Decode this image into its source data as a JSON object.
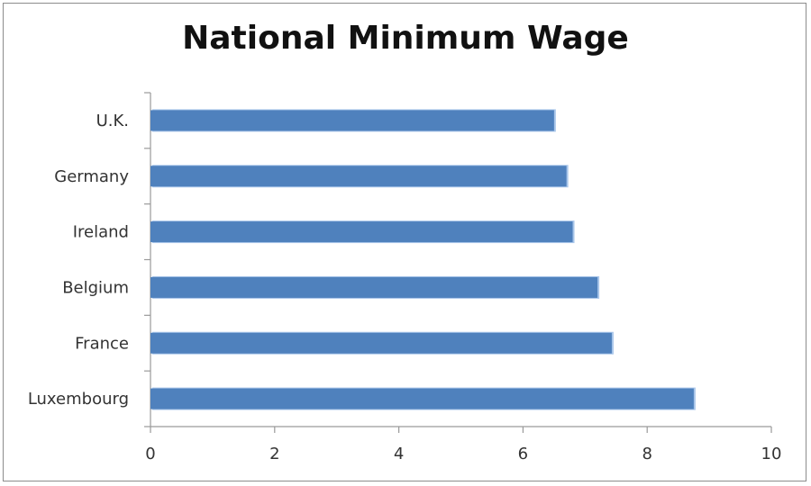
{
  "chart_data": {
    "type": "bar",
    "orientation": "horizontal",
    "title": "National Minimum Wage",
    "categories": [
      "U.K.",
      "Germany",
      "Ireland",
      "Belgium",
      "France",
      "Luxembourg"
    ],
    "values": [
      6.5,
      6.7,
      6.8,
      7.2,
      7.43,
      8.75
    ],
    "xlim": [
      0,
      10
    ],
    "xticks": [
      "0",
      "2",
      "4",
      "6",
      "8",
      "10"
    ],
    "grid": false,
    "legend": "none",
    "bar_color": "#4f81bd",
    "bar_highlight_color": "#a9c6ea"
  }
}
